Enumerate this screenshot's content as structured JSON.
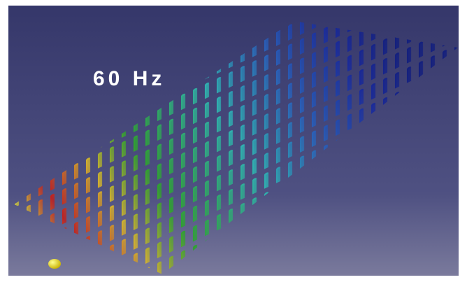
{
  "label": "60 Hz"
}
